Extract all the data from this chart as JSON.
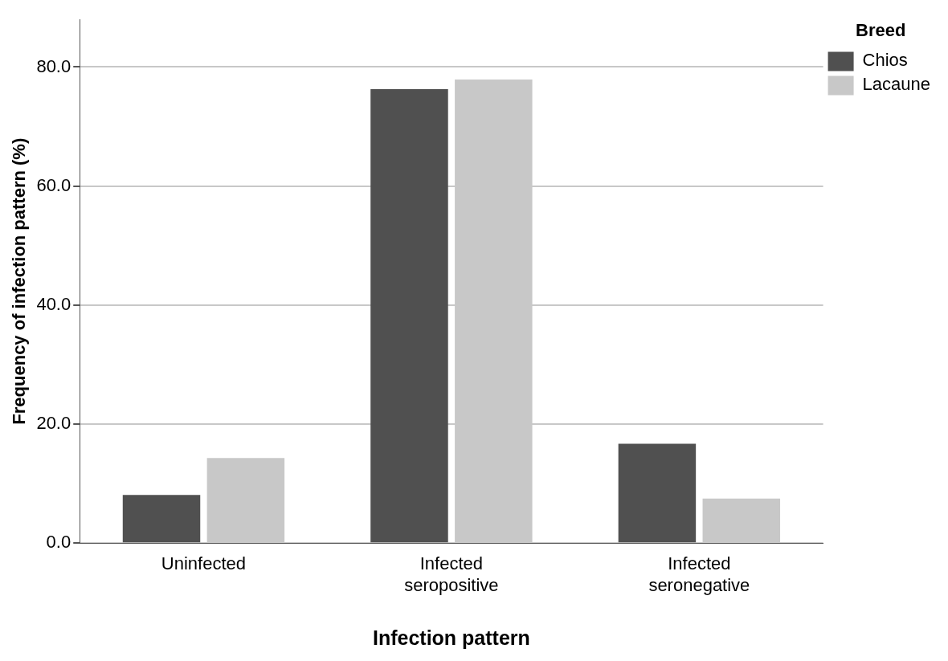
{
  "chart_data": {
    "type": "bar",
    "xlabel": "Infection pattern",
    "ylabel": "Frequency of infection pattern (%)",
    "legend_title": "Breed",
    "legend": "top right",
    "grid": "y",
    "categories": [
      "Uninfected",
      "Infected seropositive",
      "Infected seronegative"
    ],
    "series": [
      {
        "name": "Chios",
        "color": "#505050",
        "values": [
          8.1,
          76.3,
          16.7
        ]
      },
      {
        "name": "Lacaune",
        "color": "#c8c8c8",
        "values": [
          14.3,
          77.9,
          7.5
        ]
      }
    ],
    "ylim": [
      0,
      88
    ],
    "yticks": [
      {
        "value": 0,
        "label": "0.0"
      },
      {
        "value": 20,
        "label": "20.0"
      },
      {
        "value": 40,
        "label": "40.0"
      },
      {
        "value": 60,
        "label": "60.0"
      },
      {
        "value": 80,
        "label": "80.0"
      }
    ]
  }
}
